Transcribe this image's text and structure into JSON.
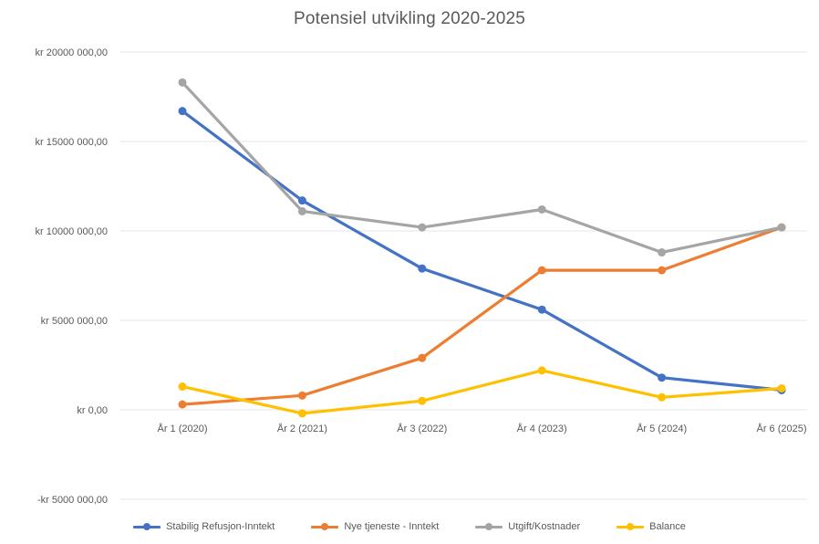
{
  "chart_data": {
    "type": "line",
    "title": "Potensiel utvikling 2020-2025",
    "categories": [
      "År 1 (2020)",
      "År 2 (2021)",
      "År 3 (2022)",
      "År 4 (2023)",
      "År 5 (2024)",
      "År 6 (2025)"
    ],
    "y_ticks": [
      {
        "value": 20000000,
        "label": "kr 20000 000,00"
      },
      {
        "value": 15000000,
        "label": "kr 15000 000,00"
      },
      {
        "value": 10000000,
        "label": "kr 10000 000,00"
      },
      {
        "value": 5000000,
        "label": "kr 5000 000,00"
      },
      {
        "value": 0,
        "label": "kr 0,00"
      },
      {
        "value": -5000000,
        "label": "-kr 5000 000,00"
      }
    ],
    "ylim": [
      -5000000,
      20000000
    ],
    "grid": true,
    "legend_position": "bottom",
    "series": [
      {
        "name": "Stabilig Refusjon-Inntekt",
        "color": "#4472C4",
        "values": [
          16700000,
          11700000,
          7900000,
          5600000,
          1800000,
          1100000
        ]
      },
      {
        "name": "Nye tjeneste - Inntekt",
        "color": "#ED7D31",
        "values": [
          300000,
          800000,
          2900000,
          7800000,
          7800000,
          10200000
        ]
      },
      {
        "name": "Utgift/Kostnader",
        "color": "#A5A5A5",
        "values": [
          18300000,
          11100000,
          10200000,
          11200000,
          8800000,
          10200000
        ]
      },
      {
        "name": "Balance",
        "color": "#FFC000",
        "values": [
          1300000,
          -200000,
          500000,
          2200000,
          700000,
          1200000
        ]
      }
    ]
  }
}
